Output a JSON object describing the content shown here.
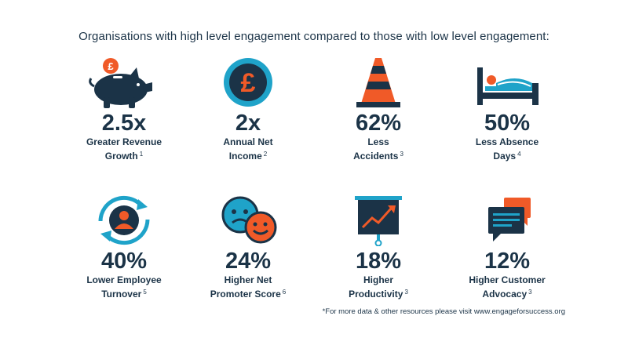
{
  "headline": "Organisations with high level engagement compared to those with low level engagement:",
  "colors": {
    "navy": "#1b3347",
    "orange": "#f05a28",
    "teal": "#1fa3c9"
  },
  "stats": [
    {
      "icon": "piggy-bank-icon",
      "value": "2.5x",
      "line1": "Greater Revenue",
      "line2": "Growth",
      "ref": "1"
    },
    {
      "icon": "pound-coin-icon",
      "value": "2x",
      "line1": "Annual Net",
      "line2": "Income",
      "ref": "2"
    },
    {
      "icon": "traffic-cone-icon",
      "value": "62%",
      "line1": "Less",
      "line2": "Accidents",
      "ref": "3"
    },
    {
      "icon": "sick-in-bed-icon",
      "value": "50%",
      "line1": "Less Absence",
      "line2": "Days",
      "ref": "4"
    },
    {
      "icon": "employee-turnover-icon",
      "value": "40%",
      "line1": "Lower Employee",
      "line2": "Turnover",
      "ref": "5"
    },
    {
      "icon": "sad-happy-faces-icon",
      "value": "24%",
      "line1": "Higher Net",
      "line2": "Promoter Score",
      "ref": "6"
    },
    {
      "icon": "growth-chart-board-icon",
      "value": "18%",
      "line1": "Higher",
      "line2": "Productivity",
      "ref": "3"
    },
    {
      "icon": "chat-bubbles-icon",
      "value": "12%",
      "line1": "Higher Customer",
      "line2": "Advocacy",
      "ref": "3"
    }
  ],
  "footnote": "*For more data & other resources please visit www.engageforsuccess.org"
}
